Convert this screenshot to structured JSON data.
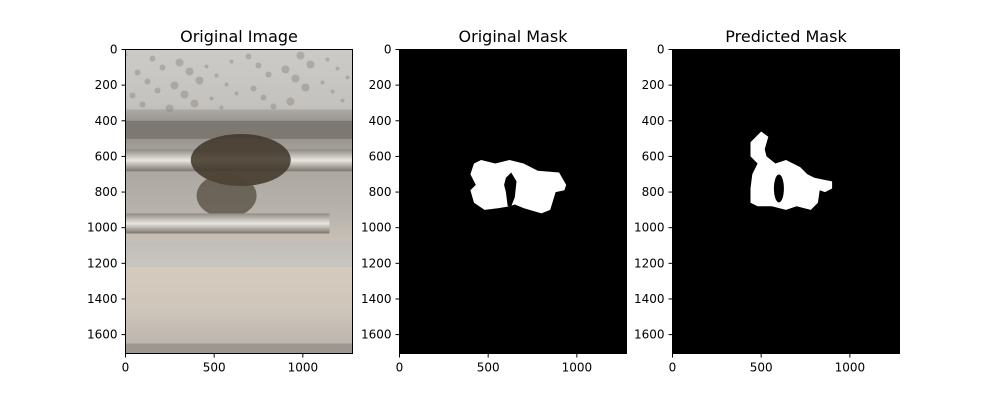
{
  "figure": {
    "panels": [
      {
        "title": "Original Image",
        "image": "original-image"
      },
      {
        "title": "Original Mask",
        "image": "original-mask"
      },
      {
        "title": "Predicted Mask",
        "image": "predicted-mask"
      }
    ]
  },
  "chart_data": [
    {
      "type": "image",
      "title": "Original Image",
      "xlim": [
        0,
        1280
      ],
      "ylim": [
        1706,
        0
      ],
      "xticks": [
        0,
        500,
        1000
      ],
      "yticks": [
        0,
        200,
        400,
        600,
        800,
        1000,
        1200,
        1400,
        1600
      ]
    },
    {
      "type": "image",
      "title": "Original Mask",
      "xlim": [
        0,
        1280
      ],
      "ylim": [
        1706,
        0
      ],
      "xticks": [
        0,
        500,
        1000
      ],
      "yticks": [
        0,
        200,
        400,
        600,
        800,
        1000,
        1200,
        1400,
        1600
      ],
      "colors": {
        "background": "#000000",
        "mask": "#ffffff"
      }
    },
    {
      "type": "image",
      "title": "Predicted Mask",
      "xlim": [
        0,
        1280
      ],
      "ylim": [
        1706,
        0
      ],
      "xticks": [
        0,
        500,
        1000
      ],
      "yticks": [
        0,
        200,
        400,
        600,
        800,
        1000,
        1200,
        1400,
        1600
      ],
      "colors": {
        "background": "#000000",
        "mask": "#ffffff"
      }
    }
  ]
}
